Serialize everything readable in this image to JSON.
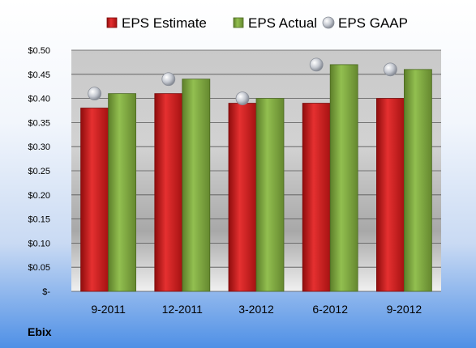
{
  "company": "Ebix",
  "colors": {
    "estimate": "#d42020",
    "actual": "#7fab3f",
    "gaap": "#b8bcc6"
  },
  "chart_data": {
    "type": "bar",
    "categories": [
      "9-2011",
      "12-2011",
      "3-2012",
      "6-2012",
      "9-2012"
    ],
    "series": [
      {
        "name": "EPS Estimate",
        "kind": "bar",
        "values": [
          0.38,
          0.41,
          0.39,
          0.39,
          0.4
        ]
      },
      {
        "name": "EPS Actual",
        "kind": "bar",
        "values": [
          0.41,
          0.44,
          0.4,
          0.47,
          0.46
        ]
      },
      {
        "name": "EPS GAAP",
        "kind": "marker",
        "values": [
          0.41,
          0.44,
          0.4,
          0.47,
          0.46
        ]
      }
    ],
    "ylim": [
      0,
      0.5
    ],
    "yticks": [
      0,
      0.05,
      0.1,
      0.15,
      0.2,
      0.25,
      0.3,
      0.35,
      0.4,
      0.45,
      0.5
    ],
    "ytick_labels": [
      "$-",
      "$0.05",
      "$0.10",
      "$0.15",
      "$0.20",
      "$0.25",
      "$0.30",
      "$0.35",
      "$0.40",
      "$0.45",
      "$0.50"
    ],
    "grid": true,
    "legend_position": "top"
  }
}
